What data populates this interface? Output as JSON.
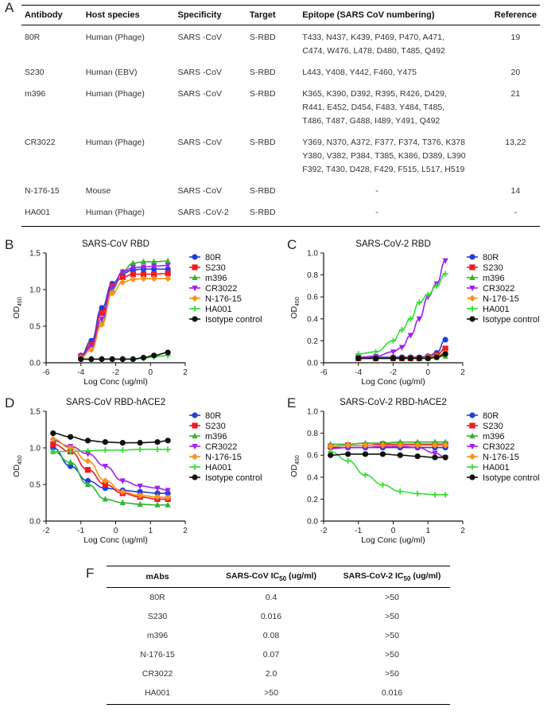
{
  "panel_labels": {
    "a": "A",
    "b": "B",
    "c": "C",
    "d": "D",
    "e": "E",
    "f": "F"
  },
  "table_a": {
    "headers": [
      "Antibody",
      "Host species",
      "Specificity",
      "Target",
      "Epitope (SARS CoV numbering)",
      "Reference"
    ],
    "rows": [
      {
        "antibody": "80R",
        "host": "Human (Phage)",
        "specificity": "SARS -CoV",
        "target": "S-RBD",
        "epitope": [
          "T433, N437, K439, P469, P470, A471,",
          "C474, W476, L478, D480, T485, Q492"
        ],
        "reference": "19"
      },
      {
        "antibody": "S230",
        "host": "Human (EBV)",
        "specificity": "SARS -CoV",
        "target": "S-RBD",
        "epitope": [
          "L443, Y408, Y442, F460, Y475"
        ],
        "reference": "20"
      },
      {
        "antibody": "m396",
        "host": "Human (Phage)",
        "specificity": "SARS -CoV",
        "target": "S-RBD",
        "epitope": [
          "K365, K390, D392, R395, R426, D429,",
          "R441, E452, D454, F483, Y484, T485,",
          "T486, T487, G488, I489, Y491, Q492"
        ],
        "reference": "21"
      },
      {
        "antibody": "CR3022",
        "host": "Human (Phage)",
        "specificity": "SARS -CoV",
        "target": "S-RBD",
        "epitope": [
          "Y369, N370, A372, F377, F374, T376, K378",
          "Y380, V382, P384, T385, K386, D389, L390",
          "F392, T430, D428, F429, F515, L517, H519"
        ],
        "reference": "13,22"
      },
      {
        "antibody": "N-176-15",
        "host": "Mouse",
        "specificity": "SARS -CoV",
        "target": "S-RBD",
        "epitope": [
          "-"
        ],
        "reference": "14"
      },
      {
        "antibody": "HA001",
        "host": "Human (Phage)",
        "specificity": "SARS -CoV-2",
        "target": "S-RBD",
        "epitope": [
          "-"
        ],
        "reference": "-"
      }
    ]
  },
  "series_colors": {
    "80R": "#1f3fe0",
    "S230": "#ee1c25",
    "m396": "#2fb52f",
    "CR3022": "#a020f0",
    "N-176-15": "#f7931e",
    "HA001": "#33dd33",
    "Isotype control": "#111111"
  },
  "chart_data": [
    {
      "id": "B",
      "type": "line",
      "title": "SARS-CoV RBD",
      "xlabel": "Log Conc (ug/ml)",
      "ylabel": "OD",
      "ylabel_sub": "450",
      "xlim": [
        -6,
        2
      ],
      "ylim": [
        0,
        1.5
      ],
      "xticks": [
        -6,
        -4,
        -2,
        0,
        2
      ],
      "yticks": [
        0.0,
        0.5,
        1.0,
        1.5
      ],
      "x": [
        -4,
        -3.4,
        -2.8,
        -2.2,
        -1.6,
        -1,
        -0.4,
        0.2,
        1
      ],
      "legend": [
        "80R",
        "S230",
        "m396",
        "CR3022",
        "N-176-15",
        "HA001",
        "Isotype control"
      ],
      "series": [
        {
          "name": "80R",
          "values": [
            0.1,
            0.3,
            0.75,
            1.08,
            1.22,
            1.27,
            1.28,
            1.28,
            1.28
          ]
        },
        {
          "name": "S230",
          "values": [
            0.08,
            0.25,
            0.68,
            1.05,
            1.17,
            1.21,
            1.21,
            1.21,
            1.22
          ]
        },
        {
          "name": "m396",
          "values": [
            0.07,
            0.2,
            0.55,
            1.0,
            1.25,
            1.36,
            1.38,
            1.38,
            1.39
          ]
        },
        {
          "name": "CR3022",
          "values": [
            0.08,
            0.22,
            0.6,
            1.03,
            1.24,
            1.3,
            1.31,
            1.32,
            1.33
          ]
        },
        {
          "name": "N-176-15",
          "values": [
            0.07,
            0.18,
            0.52,
            0.95,
            1.1,
            1.14,
            1.15,
            1.15,
            1.15
          ]
        },
        {
          "name": "HA001",
          "values": [
            0.05,
            0.05,
            0.05,
            0.05,
            0.05,
            0.05,
            0.06,
            0.08,
            0.1
          ]
        },
        {
          "name": "Isotype control",
          "values": [
            0.05,
            0.05,
            0.05,
            0.05,
            0.05,
            0.05,
            0.07,
            0.1,
            0.14
          ]
        }
      ]
    },
    {
      "id": "C",
      "type": "line",
      "title": "SARS-CoV-2 RBD",
      "xlabel": "Log Conc (ug/ml)",
      "ylabel": "OD",
      "ylabel_sub": "450",
      "xlim": [
        -6,
        2
      ],
      "ylim": [
        0,
        1.0
      ],
      "xticks": [
        -6,
        -4,
        -2,
        0,
        2
      ],
      "yticks": [
        0.0,
        0.2,
        0.4,
        0.6,
        0.8,
        1.0
      ],
      "x": [
        -4,
        -3,
        -2,
        -1.5,
        -1,
        -0.5,
        0,
        0.5,
        1
      ],
      "legend": [
        "80R",
        "S230",
        "m396",
        "CR3022",
        "N-176-15",
        "HA001",
        "Isotype control"
      ],
      "series": [
        {
          "name": "80R",
          "values": [
            0.05,
            0.05,
            0.05,
            0.05,
            0.05,
            0.05,
            0.06,
            0.09,
            0.21
          ]
        },
        {
          "name": "S230",
          "values": [
            0.04,
            0.04,
            0.04,
            0.04,
            0.04,
            0.04,
            0.05,
            0.07,
            0.13
          ]
        },
        {
          "name": "m396",
          "values": [
            0.04,
            0.04,
            0.04,
            0.04,
            0.04,
            0.04,
            0.04,
            0.05,
            0.06
          ]
        },
        {
          "name": "CR3022",
          "values": [
            0.05,
            0.06,
            0.1,
            0.14,
            0.25,
            0.4,
            0.6,
            0.72,
            0.93
          ]
        },
        {
          "name": "N-176-15",
          "values": [
            0.04,
            0.04,
            0.04,
            0.04,
            0.04,
            0.04,
            0.05,
            0.06,
            0.09
          ]
        },
        {
          "name": "HA001",
          "values": [
            0.08,
            0.1,
            0.2,
            0.3,
            0.4,
            0.55,
            0.62,
            0.7,
            0.81
          ]
        },
        {
          "name": "Isotype control",
          "values": [
            0.04,
            0.04,
            0.04,
            0.04,
            0.04,
            0.04,
            0.04,
            0.05,
            0.08
          ]
        }
      ]
    },
    {
      "id": "D",
      "type": "line",
      "title": "SARS-CoV RBD-hACE2",
      "xlabel": "Log Conc (ug/ml)",
      "ylabel": "OD",
      "ylabel_sub": "450",
      "xlim": [
        -2,
        2
      ],
      "ylim": [
        0,
        1.5
      ],
      "xticks": [
        -2,
        -1,
        0,
        1,
        2
      ],
      "yticks": [
        0.0,
        0.5,
        1.0,
        1.5
      ],
      "x": [
        -1.8,
        -1.3,
        -0.8,
        -0.3,
        0.2,
        0.7,
        1.2,
        1.5
      ],
      "legend": [
        "80R",
        "S230",
        "m396",
        "CR3022",
        "N-176-15",
        "HA001",
        "Isotype control"
      ],
      "series": [
        {
          "name": "80R",
          "values": [
            1.0,
            0.75,
            0.55,
            0.45,
            0.42,
            0.4,
            0.38,
            0.38
          ]
        },
        {
          "name": "S230",
          "values": [
            1.05,
            0.95,
            0.7,
            0.5,
            0.38,
            0.33,
            0.3,
            0.3
          ]
        },
        {
          "name": "m396",
          "values": [
            0.95,
            0.8,
            0.5,
            0.3,
            0.25,
            0.23,
            0.22,
            0.22
          ]
        },
        {
          "name": "CR3022",
          "values": [
            1.1,
            1.02,
            0.92,
            0.75,
            0.55,
            0.48,
            0.45,
            0.42
          ]
        },
        {
          "name": "N-176-15",
          "values": [
            1.12,
            1.0,
            0.82,
            0.55,
            0.4,
            0.35,
            0.33,
            0.32
          ]
        },
        {
          "name": "HA001",
          "values": [
            0.95,
            0.95,
            0.96,
            0.97,
            0.97,
            0.98,
            0.98,
            0.98
          ]
        },
        {
          "name": "Isotype control",
          "values": [
            1.2,
            1.15,
            1.1,
            1.08,
            1.07,
            1.07,
            1.08,
            1.1
          ]
        }
      ]
    },
    {
      "id": "E",
      "type": "line",
      "title": "SARS-CoV-2 RBD-hACE2",
      "xlabel": "Log Conc (ug/ml)",
      "ylabel": "OD",
      "ylabel_sub": "450",
      "xlim": [
        -2,
        2
      ],
      "ylim": [
        0,
        1.0
      ],
      "xticks": [
        -2,
        -1,
        0,
        1,
        2
      ],
      "yticks": [
        0.0,
        0.2,
        0.4,
        0.6,
        0.8,
        1.0
      ],
      "x": [
        -1.8,
        -1.3,
        -0.8,
        -0.3,
        0.2,
        0.7,
        1.2,
        1.5
      ],
      "legend": [
        "80R",
        "S230",
        "m396",
        "CR3022",
        "N-176-15",
        "HA001",
        "Isotype control"
      ],
      "series": [
        {
          "name": "80R",
          "values": [
            0.67,
            0.67,
            0.67,
            0.67,
            0.67,
            0.67,
            0.67,
            0.67
          ]
        },
        {
          "name": "S230",
          "values": [
            0.68,
            0.69,
            0.69,
            0.7,
            0.7,
            0.7,
            0.7,
            0.7
          ]
        },
        {
          "name": "m396",
          "values": [
            0.7,
            0.7,
            0.71,
            0.71,
            0.72,
            0.72,
            0.72,
            0.72
          ]
        },
        {
          "name": "CR3022",
          "values": [
            0.66,
            0.67,
            0.67,
            0.68,
            0.68,
            0.67,
            0.62,
            0.58
          ]
        },
        {
          "name": "N-176-15",
          "values": [
            0.68,
            0.69,
            0.69,
            0.69,
            0.69,
            0.69,
            0.69,
            0.69
          ]
        },
        {
          "name": "HA001",
          "values": [
            0.63,
            0.55,
            0.42,
            0.33,
            0.27,
            0.25,
            0.24,
            0.24
          ]
        },
        {
          "name": "Isotype control",
          "values": [
            0.6,
            0.61,
            0.61,
            0.61,
            0.6,
            0.59,
            0.58,
            0.58
          ]
        }
      ]
    }
  ],
  "table_f": {
    "headers": {
      "mabs": "mAbs",
      "cov_main": "SARS-CoV IC",
      "cov_sub": "50",
      "cov_unit": " (ug/ml)",
      "cov2_main": "SARS-CoV-2 IC",
      "cov2_sub": "50",
      "cov2_unit": " (ug/ml)"
    },
    "rows": [
      {
        "mab": "80R",
        "cov": "0.4",
        "cov2": ">50"
      },
      {
        "mab": "S230",
        "cov": "0.016",
        "cov2": ">50"
      },
      {
        "mab": "m396",
        "cov": "0.08",
        "cov2": ">50"
      },
      {
        "mab": "N-176-15",
        "cov": "0.07",
        "cov2": ">50"
      },
      {
        "mab": "CR3022",
        "cov": "2.0",
        "cov2": ">50"
      },
      {
        "mab": "HA001",
        "cov": ">50",
        "cov2": "0.016"
      }
    ]
  }
}
